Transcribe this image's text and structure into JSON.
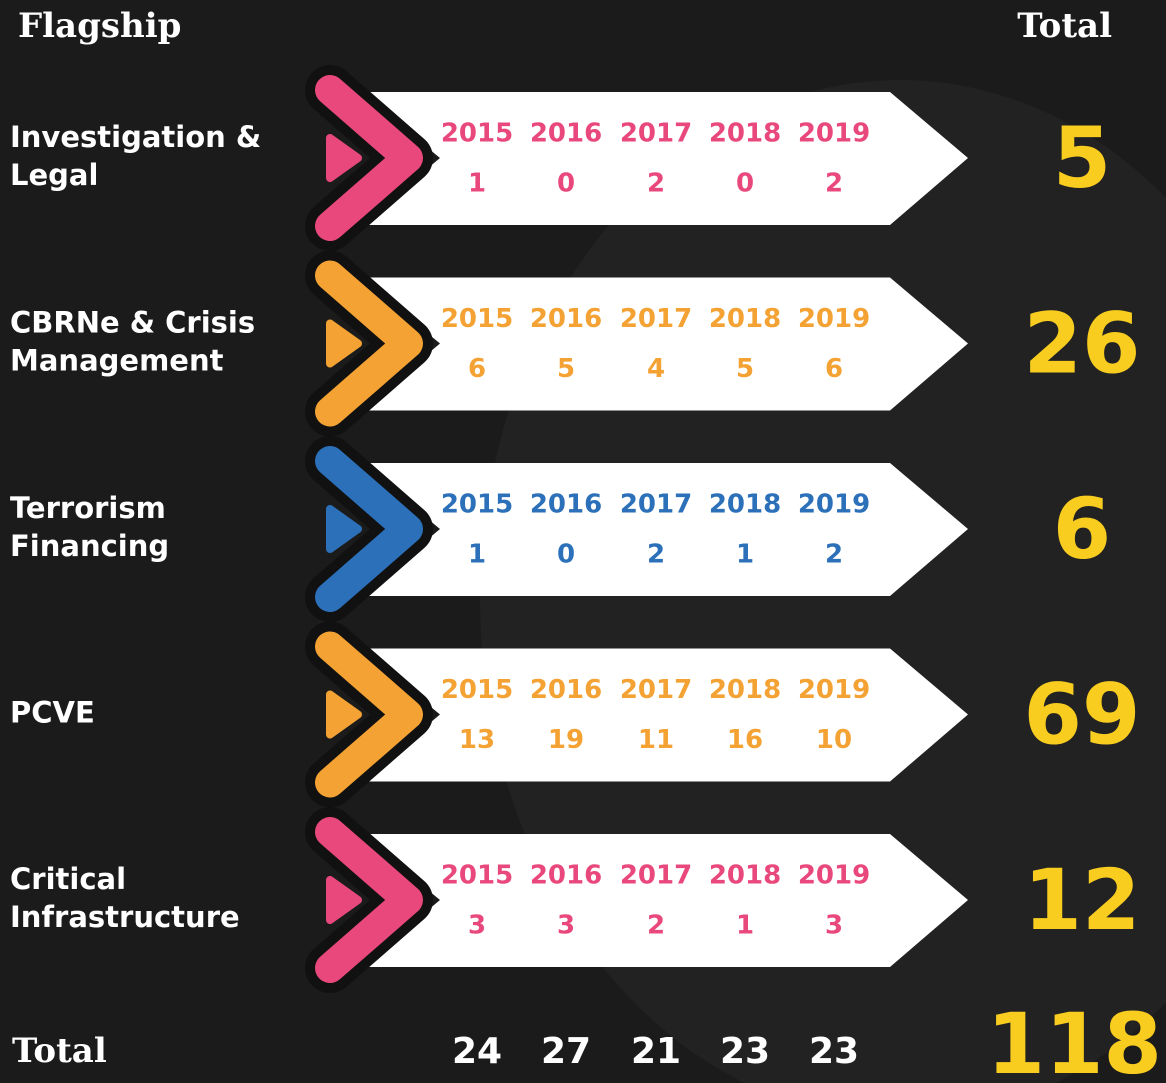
{
  "header": {
    "flagship": "Flagship",
    "total": "Total"
  },
  "rows": [
    {
      "label": [
        "Investigation &",
        "Legal"
      ],
      "color": "#e9487c",
      "years": [
        "2015",
        "2016",
        "2017",
        "2018",
        "2019"
      ],
      "values": [
        1,
        0,
        2,
        0,
        2
      ],
      "total": 5
    },
    {
      "label": [
        "CBRNe & Crisis",
        "Management"
      ],
      "color": "#f4a233",
      "years": [
        "2015",
        "2016",
        "2017",
        "2018",
        "2019"
      ],
      "values": [
        6,
        5,
        4,
        5,
        6
      ],
      "total": 26
    },
    {
      "label": [
        "Terrorism",
        "Financing"
      ],
      "color": "#2b70b9",
      "years": [
        "2015",
        "2016",
        "2017",
        "2018",
        "2019"
      ],
      "values": [
        1,
        0,
        2,
        1,
        2
      ],
      "total": 6
    },
    {
      "label": [
        "PCVE"
      ],
      "color": "#f4a233",
      "years": [
        "2015",
        "2016",
        "2017",
        "2018",
        "2019"
      ],
      "values": [
        13,
        19,
        11,
        16,
        10
      ],
      "total": 69
    },
    {
      "label": [
        "Critical",
        "Infrastructure"
      ],
      "color": "#e9487c",
      "years": [
        "2015",
        "2016",
        "2017",
        "2018",
        "2019"
      ],
      "values": [
        3,
        3,
        2,
        1,
        3
      ],
      "total": 12
    }
  ],
  "footer": {
    "label": "Total",
    "totals": [
      24,
      27,
      21,
      23,
      23
    ],
    "grand_total": 118
  }
}
